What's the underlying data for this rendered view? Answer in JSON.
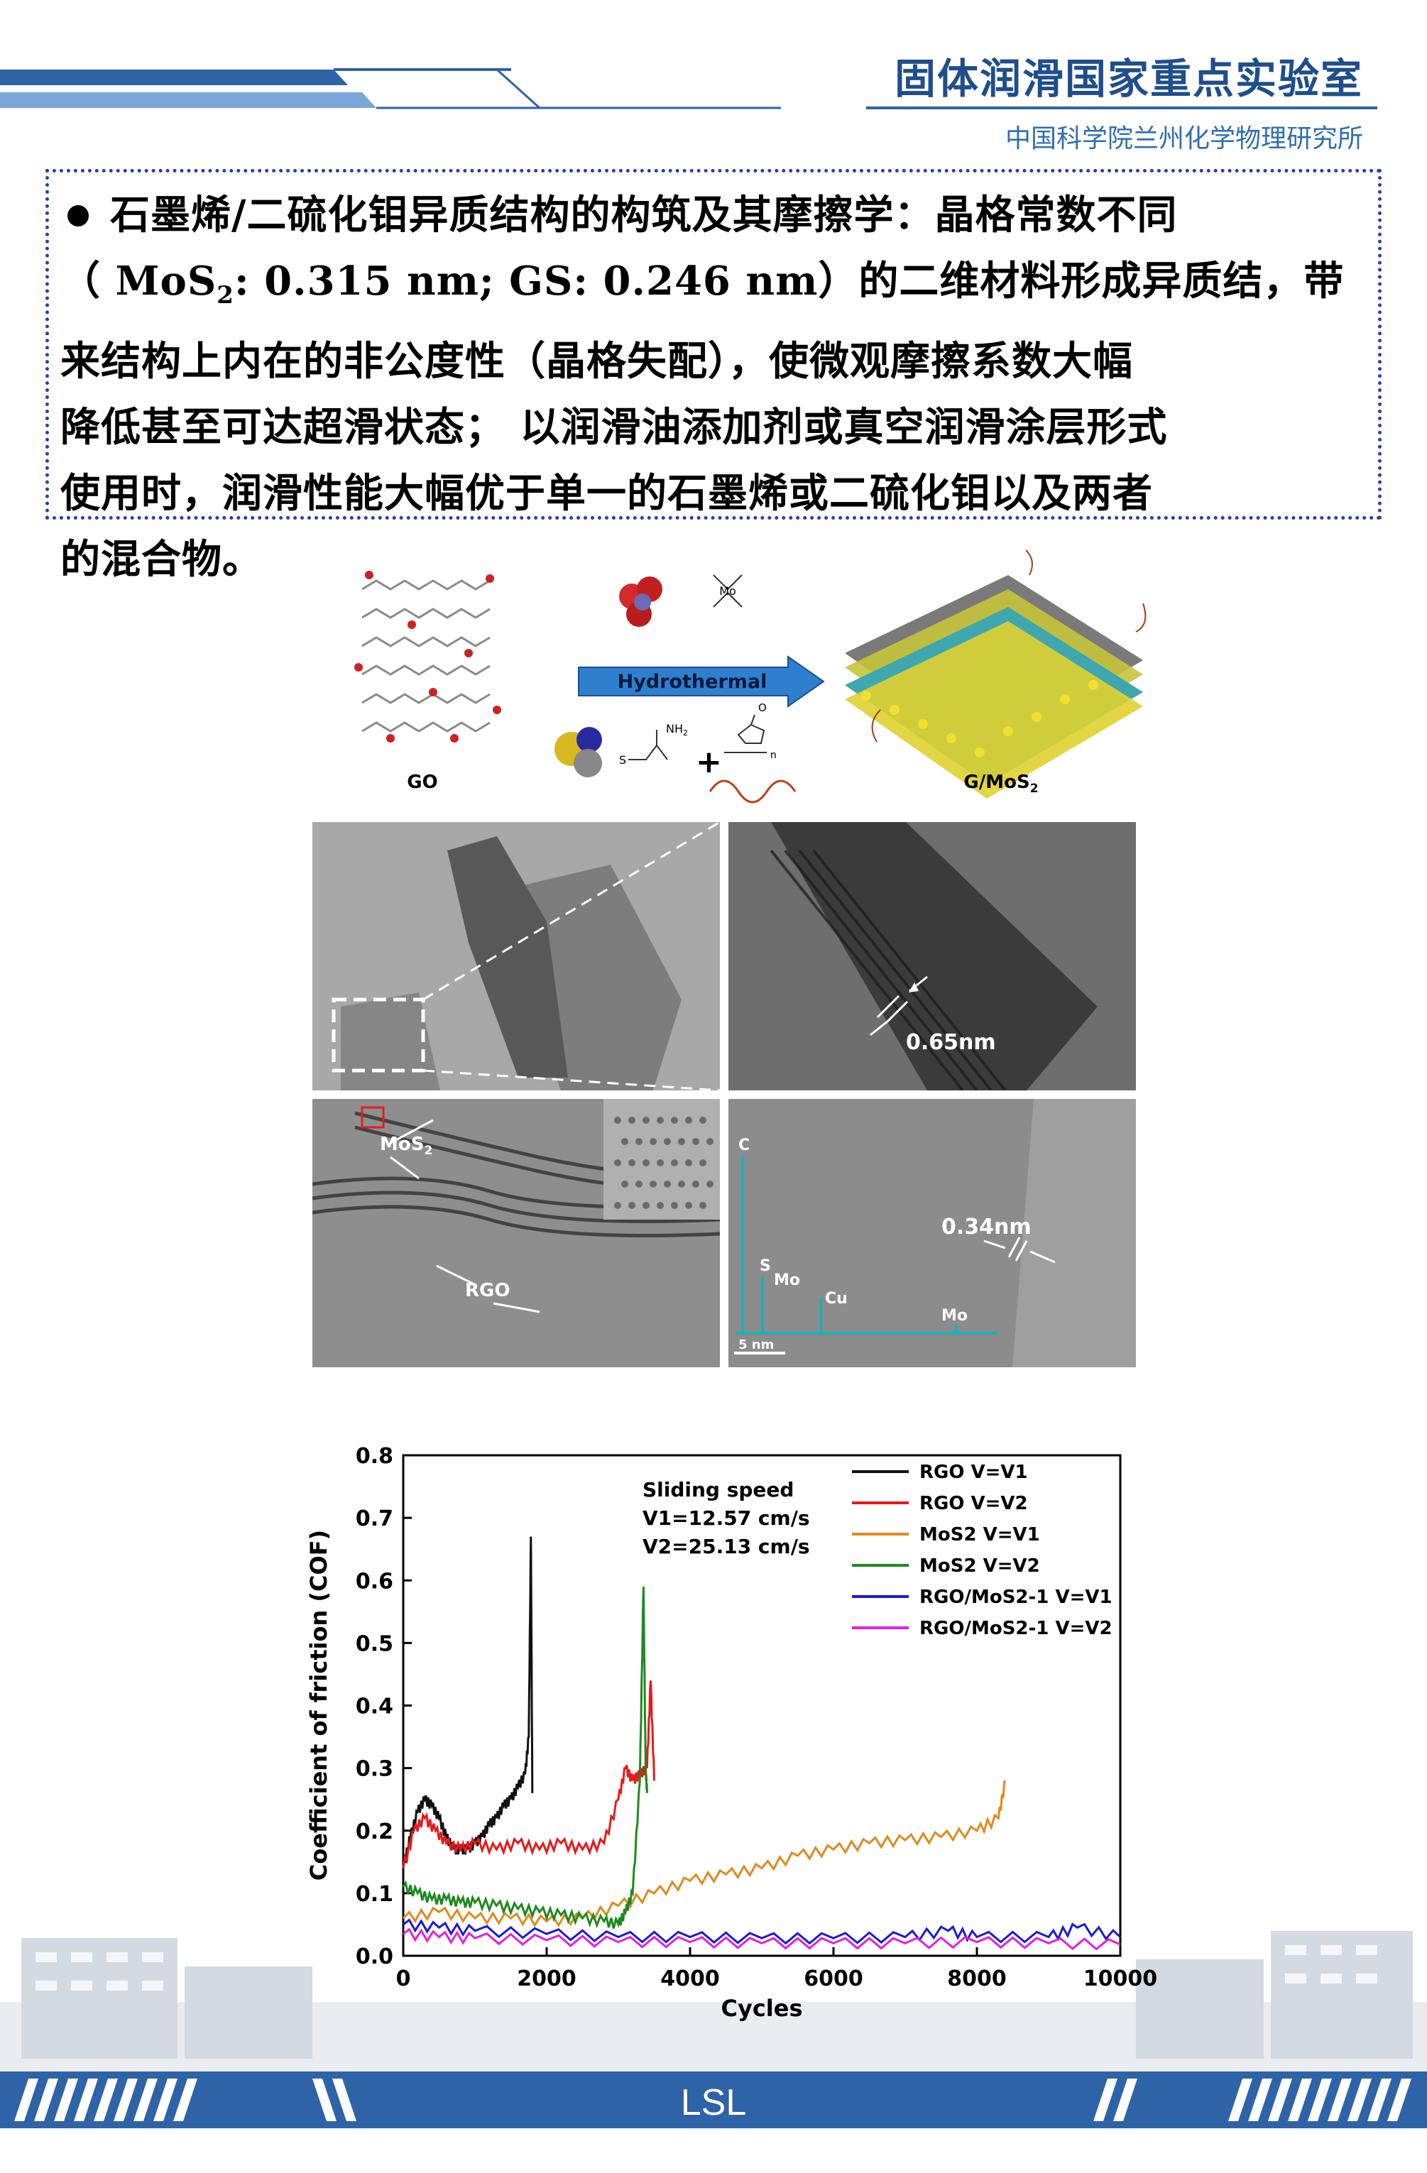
{
  "header": {
    "title": "固体润滑国家重点实验室",
    "subtitle": "中国科学院兰州化学物理研究所"
  },
  "text_block": {
    "line1": "石墨烯/二硫化钼异质结构的构筑及其摩擦学：晶格常数不同",
    "line2_open": "（ ",
    "line2_formula_a": "MoS",
    "line2_sub": "2",
    "line2_formula_b": ": 0.315 nm; GS: 0.246 nm",
    "line2_rest": "）的二维材料形成异质结，带",
    "line3": "来结构上内在的非公度性（晶格失配），使微观摩擦系数大幅",
    "line4": "降低甚至可达超滑状态；  以润滑油添加剂或真空润滑涂层形式",
    "line5": "使用时，润滑性能大幅优于单一的石墨烯或二硫化钼以及两者",
    "line6": "的混合物。"
  },
  "schematic": {
    "left_label": "GO",
    "arrow_label": "Hydrothermal",
    "right_label_a": "G/MoS",
    "right_label_sub": "2",
    "mo_label": "Mo",
    "nh2_label": "NH",
    "nh2_sub": "2",
    "s_label": "S",
    "n_label": "n",
    "o_label": "O",
    "plus": "+"
  },
  "tem": {
    "panel_b_label": "0.65nm",
    "panel_c_mos2_a": "MoS",
    "panel_c_mos2_sub": "2",
    "panel_c_rgo": "RGO",
    "panel_d_label": "0.34nm",
    "panel_d_scale": "5 nm",
    "eds_labels": [
      "C",
      "S",
      "Mo",
      "Cu",
      "Mo"
    ]
  },
  "chart_data": {
    "type": "line",
    "xlabel": "Cycles",
    "ylabel": "Coefficient of friction (COF)",
    "xlim": [
      0,
      10000
    ],
    "ylim": [
      0,
      0.8
    ],
    "xticks": [
      "0",
      "2000",
      "4000",
      "6000",
      "8000",
      "10000"
    ],
    "yticks": [
      "0.0",
      "0.1",
      "0.2",
      "0.3",
      "0.4",
      "0.5",
      "0.6",
      "0.7",
      "0.8"
    ],
    "annotation": [
      "Sliding speed",
      "V1=12.57 cm/s",
      "V2=25.13 cm/s"
    ],
    "legend_position": "top-right",
    "series": [
      {
        "name": "RGO V=V1",
        "color": "#111111",
        "x": [
          0,
          100,
          200,
          300,
          400,
          500,
          600,
          700,
          800,
          900,
          1000,
          1100,
          1200,
          1300,
          1400,
          1500,
          1600,
          1700,
          1750,
          1780,
          1800
        ],
        "y": [
          0.14,
          0.19,
          0.23,
          0.25,
          0.24,
          0.22,
          0.19,
          0.17,
          0.17,
          0.17,
          0.18,
          0.19,
          0.21,
          0.22,
          0.24,
          0.25,
          0.27,
          0.29,
          0.35,
          0.67,
          0.26
        ]
      },
      {
        "name": "RGO V=V2",
        "color": "#e8191a",
        "x": [
          0,
          150,
          300,
          450,
          600,
          800,
          1000,
          1300,
          1600,
          1900,
          2200,
          2500,
          2800,
          3000,
          3100,
          3200,
          3300,
          3400,
          3450,
          3500
        ],
        "y": [
          0.14,
          0.2,
          0.22,
          0.2,
          0.18,
          0.17,
          0.18,
          0.17,
          0.18,
          0.17,
          0.18,
          0.17,
          0.18,
          0.25,
          0.3,
          0.28,
          0.29,
          0.3,
          0.44,
          0.28
        ]
      },
      {
        "name": "MoS2 V=V1",
        "color": "#e08a1e",
        "x": [
          0,
          500,
          1000,
          1500,
          2000,
          2500,
          3000,
          3500,
          4000,
          4500,
          5000,
          5500,
          6000,
          6500,
          7000,
          7500,
          8000,
          8300,
          8400
        ],
        "y": [
          0.06,
          0.07,
          0.06,
          0.06,
          0.055,
          0.06,
          0.08,
          0.1,
          0.12,
          0.13,
          0.14,
          0.16,
          0.17,
          0.18,
          0.185,
          0.19,
          0.2,
          0.22,
          0.28
        ]
      },
      {
        "name": "MoS2 V=V2",
        "color": "#1e8a1e",
        "x": [
          0,
          200,
          400,
          600,
          800,
          1000,
          1300,
          1600,
          1900,
          2200,
          2500,
          2800,
          3000,
          3100,
          3200,
          3300,
          3350,
          3380,
          3400
        ],
        "y": [
          0.11,
          0.1,
          0.09,
          0.09,
          0.085,
          0.085,
          0.08,
          0.075,
          0.07,
          0.065,
          0.06,
          0.055,
          0.05,
          0.07,
          0.1,
          0.28,
          0.59,
          0.3,
          0.26
        ]
      },
      {
        "name": "RGO/MoS2-1 V=V1",
        "color": "#1a1ad6",
        "x": [
          0,
          500,
          1000,
          2000,
          3000,
          4000,
          5000,
          6000,
          7000,
          7600,
          8000,
          9000,
          9400,
          10000
        ],
        "y": [
          0.05,
          0.045,
          0.04,
          0.035,
          0.03,
          0.03,
          0.028,
          0.028,
          0.03,
          0.04,
          0.03,
          0.03,
          0.045,
          0.03
        ]
      },
      {
        "name": "RGO/MoS2-1 V=V2",
        "color": "#e020e0",
        "x": [
          0,
          500,
          1000,
          2000,
          3000,
          4000,
          5000,
          6000,
          7000,
          8000,
          9000,
          10000
        ],
        "y": [
          0.035,
          0.03,
          0.028,
          0.025,
          0.022,
          0.022,
          0.02,
          0.02,
          0.02,
          0.022,
          0.02,
          0.018
        ]
      }
    ]
  },
  "footer": {
    "label": "LSL"
  },
  "colors": {
    "brand_blue": "#2e63a8",
    "title_blue": "#1f4e8c",
    "box_border": "#2440a8"
  }
}
